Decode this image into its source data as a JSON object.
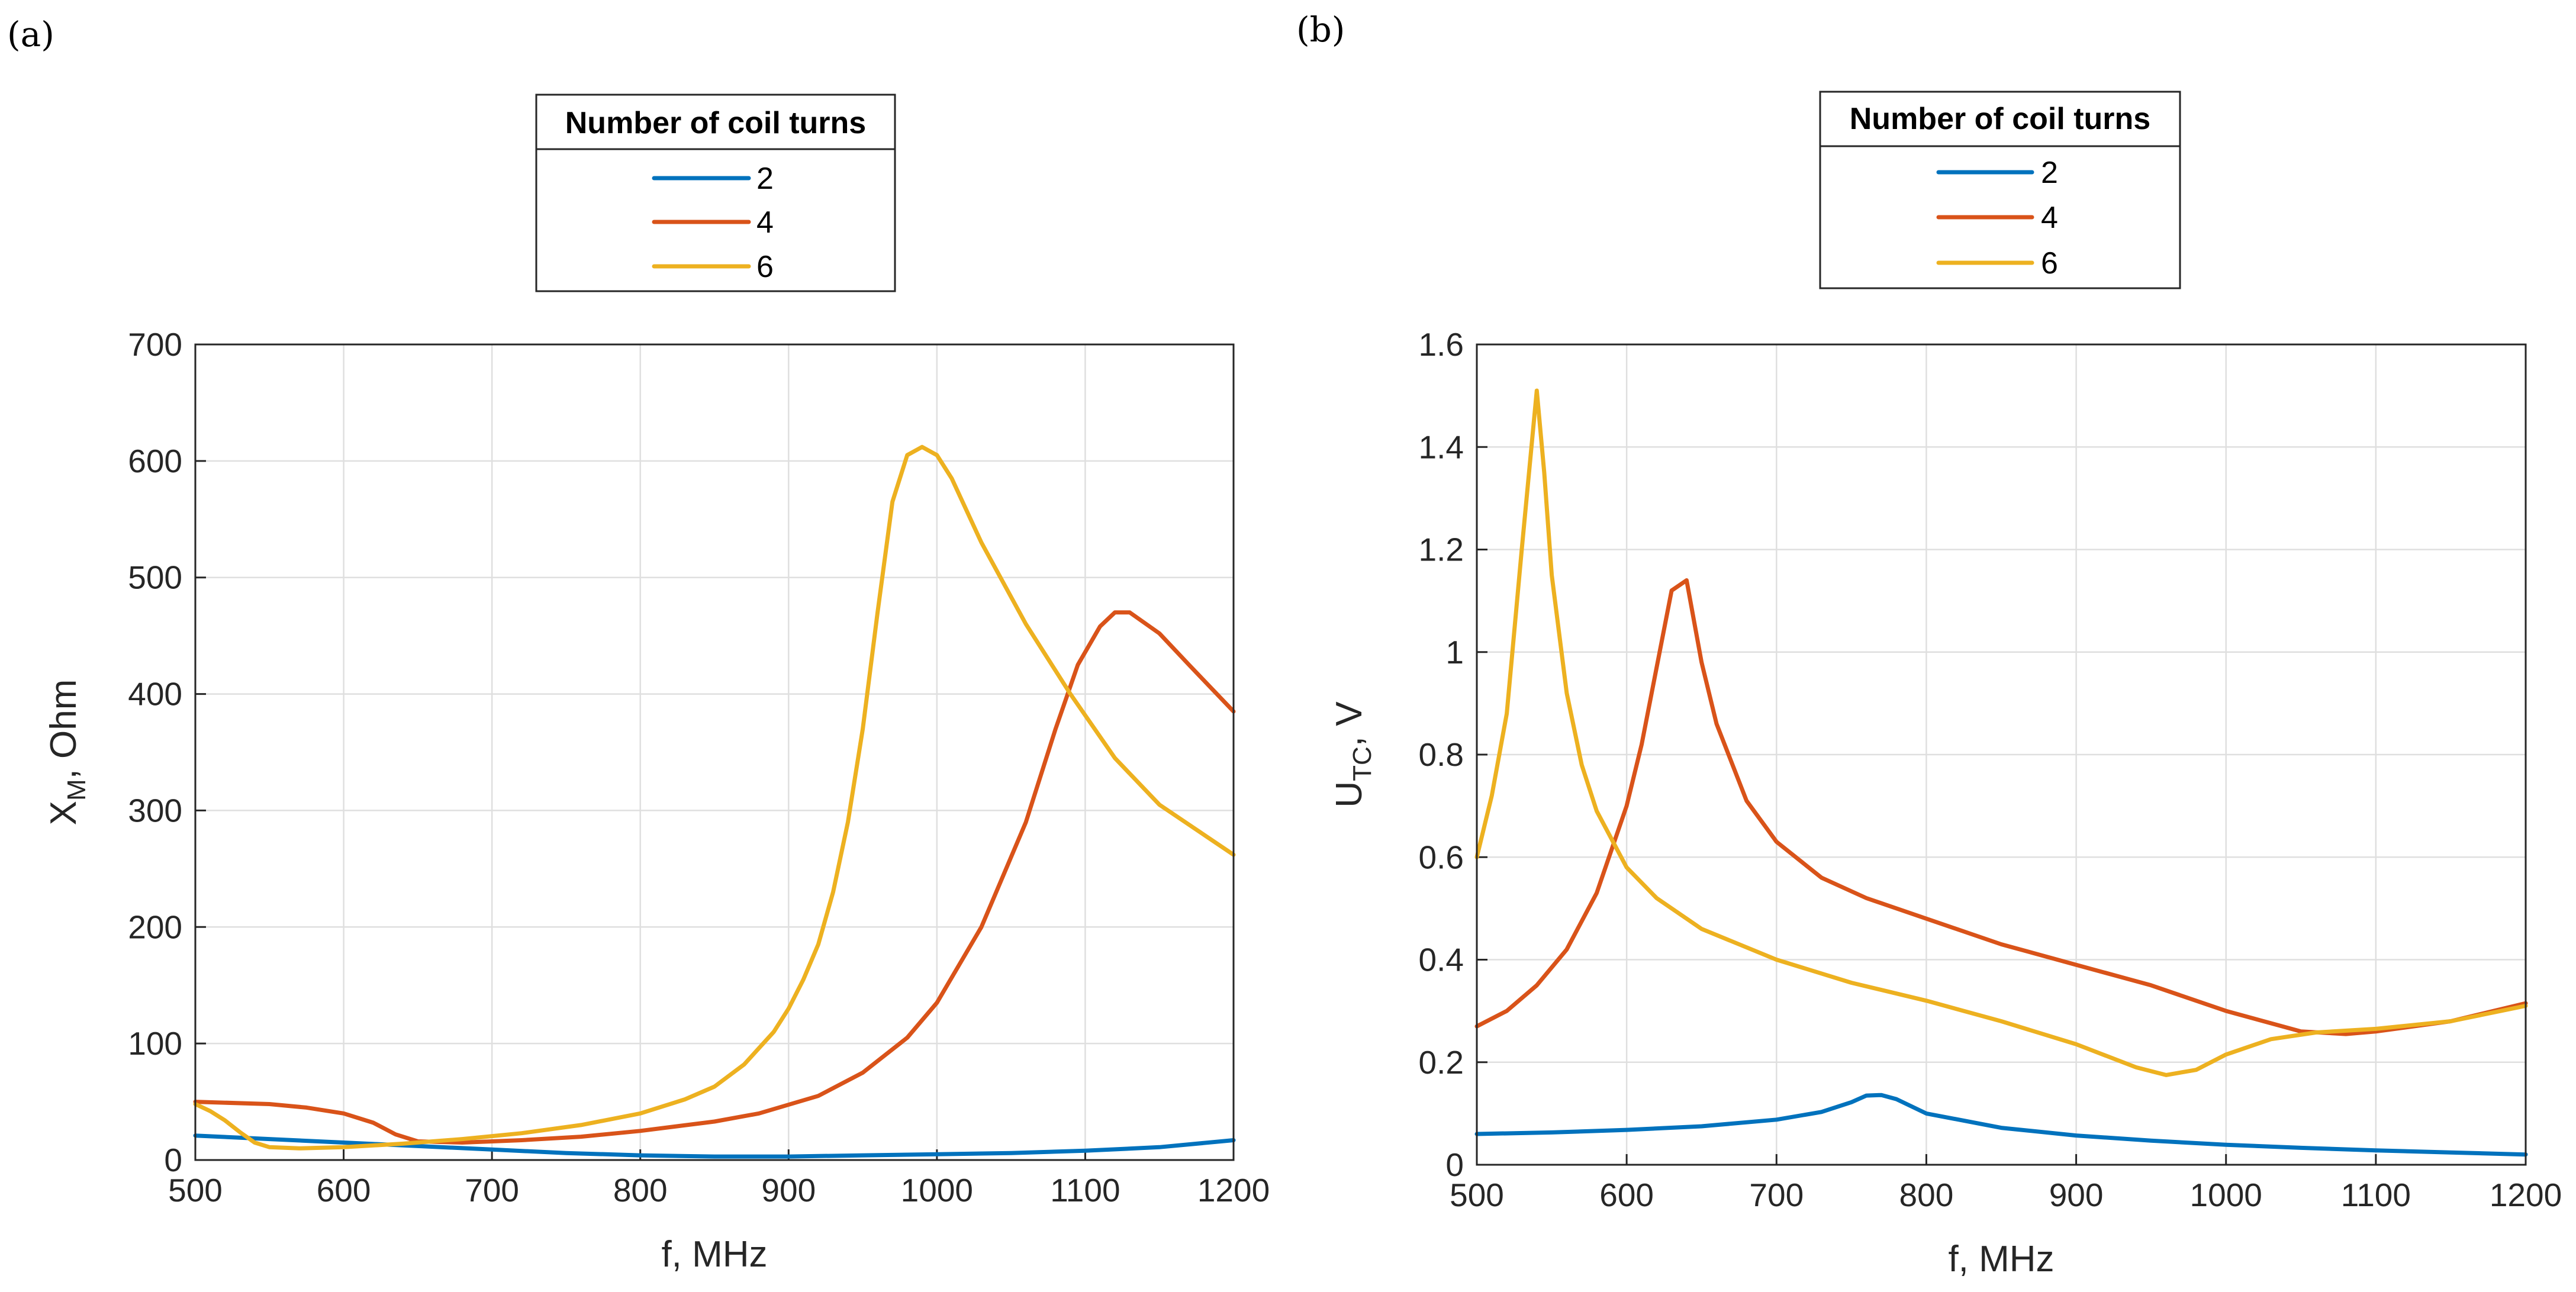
{
  "chart_data": [
    {
      "panel_label": "(a)",
      "type": "line",
      "xlabel": "f, MHz",
      "ylabel_main": "X",
      "ylabel_sub": "M",
      "ylabel_rest": ", Ohm",
      "xlim": [
        500,
        1200
      ],
      "ylim": [
        0,
        700
      ],
      "xticks": [
        500,
        600,
        700,
        800,
        900,
        1000,
        1100,
        1200
      ],
      "yticks": [
        0,
        100,
        200,
        300,
        400,
        500,
        600,
        700
      ],
      "ytick_labels": [
        "0",
        "100",
        "200",
        "300",
        "400",
        "500",
        "600",
        "700"
      ],
      "grid": true,
      "legend": {
        "title": "Number of coil turns",
        "placement": "top-center-outside"
      },
      "series": [
        {
          "name": "2",
          "color": "#0072BD",
          "x": [
            500,
            550,
            600,
            650,
            700,
            750,
            800,
            850,
            900,
            950,
            1000,
            1050,
            1100,
            1150,
            1200
          ],
          "y": [
            21,
            18,
            15,
            12,
            9,
            6,
            4,
            3,
            3,
            4,
            5,
            6,
            8,
            11,
            17
          ]
        },
        {
          "name": "4",
          "color": "#D95319",
          "x": [
            500,
            550,
            575,
            600,
            620,
            635,
            650,
            680,
            720,
            760,
            800,
            850,
            880,
            920,
            950,
            980,
            1000,
            1030,
            1060,
            1080,
            1095,
            1110,
            1120,
            1130,
            1150,
            1170,
            1200
          ],
          "y": [
            50,
            48,
            45,
            40,
            32,
            22,
            16,
            15,
            17,
            20,
            25,
            33,
            40,
            55,
            75,
            105,
            135,
            200,
            290,
            370,
            425,
            458,
            470,
            470,
            452,
            425,
            385
          ]
        },
        {
          "name": "6",
          "color": "#EDB120",
          "x": [
            500,
            510,
            520,
            530,
            540,
            550,
            570,
            600,
            640,
            680,
            720,
            760,
            800,
            830,
            850,
            870,
            890,
            900,
            910,
            920,
            930,
            940,
            950,
            960,
            970,
            980,
            990,
            1000,
            1010,
            1030,
            1060,
            1090,
            1120,
            1150,
            1200
          ],
          "y": [
            48,
            42,
            34,
            24,
            15,
            11,
            10,
            11,
            14,
            18,
            23,
            30,
            40,
            52,
            63,
            82,
            110,
            130,
            155,
            185,
            230,
            290,
            370,
            470,
            565,
            605,
            612,
            605,
            585,
            530,
            460,
            400,
            345,
            305,
            262
          ]
        }
      ]
    },
    {
      "panel_label": "(b)",
      "type": "line",
      "xlabel": "f, MHz",
      "ylabel_main": "U",
      "ylabel_sub": "TC",
      "ylabel_rest": ", V",
      "xlim": [
        500,
        1200
      ],
      "ylim": [
        0,
        1.6
      ],
      "xticks": [
        500,
        600,
        700,
        800,
        900,
        1000,
        1100,
        1200
      ],
      "yticks": [
        0,
        0.2,
        0.4,
        0.6,
        0.8,
        1.0,
        1.2,
        1.4,
        1.6
      ],
      "ytick_labels": [
        "0",
        "0.2",
        "0.4",
        "0.6",
        "0.8",
        "1",
        "1.2",
        "1.4",
        "1.6"
      ],
      "grid": true,
      "legend": {
        "title": "Number of coil turns",
        "placement": "top-center-outside"
      },
      "series": [
        {
          "name": "2",
          "color": "#0072BD",
          "x": [
            500,
            550,
            600,
            650,
            700,
            730,
            750,
            760,
            770,
            780,
            800,
            850,
            900,
            950,
            1000,
            1050,
            1100,
            1150,
            1200
          ],
          "y": [
            0.06,
            0.063,
            0.068,
            0.075,
            0.088,
            0.103,
            0.122,
            0.135,
            0.136,
            0.128,
            0.1,
            0.072,
            0.057,
            0.047,
            0.039,
            0.033,
            0.028,
            0.024,
            0.02
          ]
        },
        {
          "name": "4",
          "color": "#D95319",
          "x": [
            500,
            520,
            540,
            560,
            580,
            600,
            610,
            620,
            630,
            640,
            650,
            660,
            680,
            700,
            730,
            760,
            800,
            850,
            900,
            950,
            1000,
            1050,
            1080,
            1100,
            1150,
            1200
          ],
          "y": [
            0.27,
            0.3,
            0.35,
            0.42,
            0.53,
            0.7,
            0.82,
            0.97,
            1.12,
            1.14,
            0.98,
            0.86,
            0.71,
            0.63,
            0.56,
            0.52,
            0.48,
            0.43,
            0.39,
            0.35,
            0.3,
            0.26,
            0.255,
            0.26,
            0.28,
            0.315
          ]
        },
        {
          "name": "6",
          "color": "#EDB120",
          "x": [
            500,
            510,
            520,
            530,
            540,
            545,
            550,
            560,
            570,
            580,
            600,
            620,
            650,
            700,
            750,
            800,
            850,
            900,
            940,
            960,
            980,
            1000,
            1030,
            1060,
            1100,
            1150,
            1200
          ],
          "y": [
            0.6,
            0.72,
            0.88,
            1.2,
            1.51,
            1.35,
            1.15,
            0.92,
            0.78,
            0.69,
            0.58,
            0.52,
            0.46,
            0.4,
            0.355,
            0.32,
            0.28,
            0.235,
            0.19,
            0.175,
            0.185,
            0.215,
            0.245,
            0.258,
            0.265,
            0.28,
            0.31
          ]
        }
      ]
    }
  ]
}
